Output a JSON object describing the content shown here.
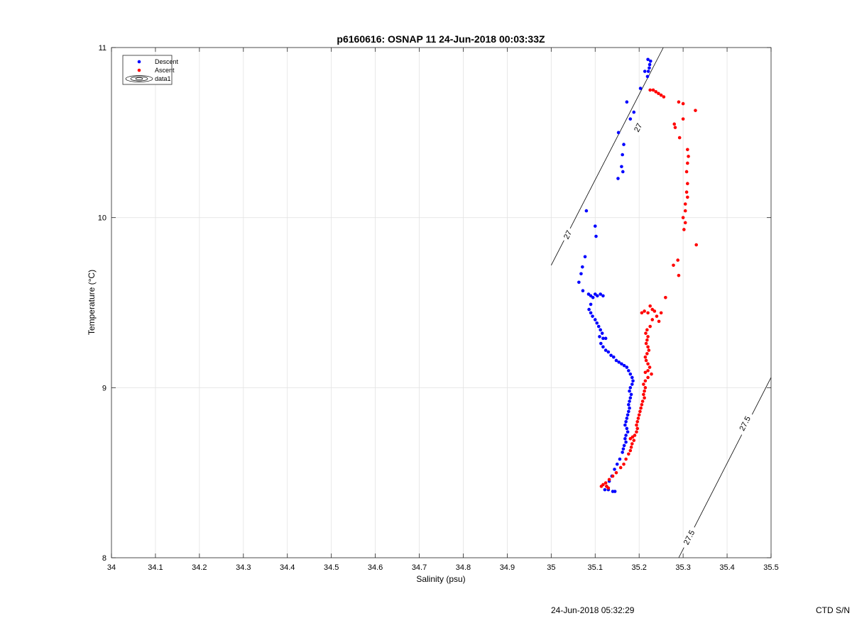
{
  "chart_data": {
    "type": "scatter",
    "title": "p6160616: OSNAP 11 24-Jun-2018 00:03:33Z",
    "xlabel": "Salinity (psu)",
    "ylabel": "Temperature (°C)",
    "xlim": [
      34,
      35.5
    ],
    "ylim": [
      8,
      11
    ],
    "xticks": [
      34,
      34.1,
      34.2,
      34.3,
      34.4,
      34.5,
      34.6,
      34.7,
      34.8,
      34.9,
      35,
      35.1,
      35.2,
      35.3,
      35.4,
      35.5
    ],
    "xtick_labels": [
      "34",
      "34.1",
      "34.2",
      "34.3",
      "34.4",
      "34.5",
      "34.6",
      "34.7",
      "34.8",
      "34.9",
      "35",
      "35.1",
      "35.2",
      "35.3",
      "35.4",
      "35.5"
    ],
    "yticks": [
      8,
      9,
      10,
      11
    ],
    "ytick_labels": [
      "8",
      "9",
      "10",
      "11"
    ],
    "grid": true,
    "legend_position": "top-left",
    "legend": [
      {
        "label": "Descent",
        "marker": "dot",
        "color": "#0000ff"
      },
      {
        "label": "Ascent",
        "marker": "dot",
        "color": "#ff0000"
      },
      {
        "label": "data1",
        "marker": "contour",
        "color": "#000000"
      }
    ],
    "series": [
      {
        "name": "Descent",
        "color": "#0000ff",
        "points": [
          [
            35.22,
            10.93
          ],
          [
            35.226,
            10.92
          ],
          [
            35.224,
            10.9
          ],
          [
            35.223,
            10.88
          ],
          [
            35.221,
            10.86
          ],
          [
            35.219,
            10.83
          ],
          [
            35.213,
            10.86
          ],
          [
            35.203,
            10.76
          ],
          [
            35.172,
            10.68
          ],
          [
            35.188,
            10.62
          ],
          [
            35.18,
            10.58
          ],
          [
            35.153,
            10.5
          ],
          [
            35.165,
            10.43
          ],
          [
            35.162,
            10.37
          ],
          [
            35.16,
            10.3
          ],
          [
            35.163,
            10.27
          ],
          [
            35.152,
            10.23
          ],
          [
            35.08,
            10.04
          ],
          [
            35.1,
            9.95
          ],
          [
            35.102,
            9.89
          ],
          [
            35.077,
            9.77
          ],
          [
            35.071,
            9.71
          ],
          [
            35.068,
            9.67
          ],
          [
            35.063,
            9.62
          ],
          [
            35.072,
            9.57
          ],
          [
            35.085,
            9.55
          ],
          [
            35.09,
            9.54
          ],
          [
            35.095,
            9.53
          ],
          [
            35.1,
            9.55
          ],
          [
            35.105,
            9.54
          ],
          [
            35.112,
            9.55
          ],
          [
            35.118,
            9.54
          ],
          [
            35.09,
            9.49
          ],
          [
            35.086,
            9.46
          ],
          [
            35.09,
            9.44
          ],
          [
            35.094,
            9.42
          ],
          [
            35.1,
            9.4
          ],
          [
            35.104,
            9.38
          ],
          [
            35.108,
            9.36
          ],
          [
            35.112,
            9.34
          ],
          [
            35.116,
            9.32
          ],
          [
            35.11,
            9.3
          ],
          [
            35.118,
            9.29
          ],
          [
            35.124,
            9.29
          ],
          [
            35.113,
            9.26
          ],
          [
            35.118,
            9.24
          ],
          [
            35.124,
            9.22
          ],
          [
            35.13,
            9.21
          ],
          [
            35.136,
            9.19
          ],
          [
            35.142,
            9.18
          ],
          [
            35.148,
            9.16
          ],
          [
            35.154,
            9.15
          ],
          [
            35.16,
            9.14
          ],
          [
            35.166,
            9.13
          ],
          [
            35.172,
            9.12
          ],
          [
            35.176,
            9.1
          ],
          [
            35.18,
            9.08
          ],
          [
            35.184,
            9.06
          ],
          [
            35.186,
            9.04
          ],
          [
            35.184,
            9.02
          ],
          [
            35.18,
            9.0
          ],
          [
            35.178,
            8.98
          ],
          [
            35.182,
            8.96
          ],
          [
            35.18,
            8.94
          ],
          [
            35.178,
            8.92
          ],
          [
            35.176,
            8.9
          ],
          [
            35.178,
            8.88
          ],
          [
            35.176,
            8.86
          ],
          [
            35.174,
            8.84
          ],
          [
            35.172,
            8.82
          ],
          [
            35.17,
            8.8
          ],
          [
            35.168,
            8.78
          ],
          [
            35.172,
            8.76
          ],
          [
            35.174,
            8.74
          ],
          [
            35.17,
            8.72
          ],
          [
            35.168,
            8.7
          ],
          [
            35.17,
            8.68
          ],
          [
            35.166,
            8.66
          ],
          [
            35.164,
            8.64
          ],
          [
            35.162,
            8.62
          ],
          [
            35.156,
            8.58
          ],
          [
            35.15,
            8.55
          ],
          [
            35.144,
            8.52
          ],
          [
            35.138,
            8.48
          ],
          [
            35.132,
            8.45
          ],
          [
            35.126,
            8.42
          ],
          [
            35.122,
            8.4
          ],
          [
            35.13,
            8.4
          ],
          [
            35.14,
            8.39
          ],
          [
            35.145,
            8.39
          ]
        ]
      },
      {
        "name": "Ascent",
        "color": "#ff0000",
        "points": [
          [
            35.225,
            10.75
          ],
          [
            35.232,
            10.75
          ],
          [
            35.238,
            10.74
          ],
          [
            35.244,
            10.73
          ],
          [
            35.25,
            10.72
          ],
          [
            35.256,
            10.71
          ],
          [
            35.29,
            10.68
          ],
          [
            35.3,
            10.67
          ],
          [
            35.328,
            10.63
          ],
          [
            35.3,
            10.58
          ],
          [
            35.28,
            10.55
          ],
          [
            35.282,
            10.53
          ],
          [
            35.292,
            10.47
          ],
          [
            35.31,
            10.4
          ],
          [
            35.312,
            10.36
          ],
          [
            35.31,
            10.32
          ],
          [
            35.308,
            10.27
          ],
          [
            35.31,
            10.2
          ],
          [
            35.308,
            10.15
          ],
          [
            35.31,
            10.12
          ],
          [
            35.305,
            10.08
          ],
          [
            35.305,
            10.04
          ],
          [
            35.3,
            10.0
          ],
          [
            35.305,
            9.97
          ],
          [
            35.302,
            9.93
          ],
          [
            35.33,
            9.84
          ],
          [
            35.288,
            9.75
          ],
          [
            35.278,
            9.72
          ],
          [
            35.29,
            9.66
          ],
          [
            35.26,
            9.53
          ],
          [
            35.225,
            9.48
          ],
          [
            35.23,
            9.46
          ],
          [
            35.235,
            9.45
          ],
          [
            35.22,
            9.44
          ],
          [
            35.212,
            9.45
          ],
          [
            35.206,
            9.44
          ],
          [
            35.25,
            9.44
          ],
          [
            35.24,
            9.42
          ],
          [
            35.23,
            9.4
          ],
          [
            35.245,
            9.39
          ],
          [
            35.225,
            9.36
          ],
          [
            35.218,
            9.34
          ],
          [
            35.215,
            9.32
          ],
          [
            35.22,
            9.3
          ],
          [
            35.218,
            9.28
          ],
          [
            35.216,
            9.26
          ],
          [
            35.22,
            9.24
          ],
          [
            35.222,
            9.22
          ],
          [
            35.218,
            9.2
          ],
          [
            35.214,
            9.18
          ],
          [
            35.216,
            9.16
          ],
          [
            35.22,
            9.14
          ],
          [
            35.224,
            9.12
          ],
          [
            35.22,
            9.1
          ],
          [
            35.214,
            9.09
          ],
          [
            35.228,
            9.08
          ],
          [
            35.22,
            9.06
          ],
          [
            35.214,
            9.04
          ],
          [
            35.21,
            9.02
          ],
          [
            35.214,
            9.0
          ],
          [
            35.212,
            8.98
          ],
          [
            35.21,
            8.96
          ],
          [
            35.212,
            8.94
          ],
          [
            35.208,
            8.92
          ],
          [
            35.206,
            8.9
          ],
          [
            35.204,
            8.88
          ],
          [
            35.202,
            8.86
          ],
          [
            35.2,
            8.84
          ],
          [
            35.198,
            8.82
          ],
          [
            35.196,
            8.8
          ],
          [
            35.194,
            8.78
          ],
          [
            35.196,
            8.76
          ],
          [
            35.194,
            8.74
          ],
          [
            35.19,
            8.72
          ],
          [
            35.185,
            8.71
          ],
          [
            35.18,
            8.7
          ],
          [
            35.188,
            8.69
          ],
          [
            35.184,
            8.67
          ],
          [
            35.182,
            8.65
          ],
          [
            35.18,
            8.63
          ],
          [
            35.176,
            8.61
          ],
          [
            35.17,
            8.58
          ],
          [
            35.165,
            8.55
          ],
          [
            35.158,
            8.53
          ],
          [
            35.148,
            8.5
          ],
          [
            35.14,
            8.48
          ],
          [
            35.132,
            8.46
          ],
          [
            35.124,
            8.44
          ],
          [
            35.118,
            8.43
          ],
          [
            35.114,
            8.42
          ],
          [
            35.126,
            8.42
          ],
          [
            35.13,
            8.41
          ]
        ]
      }
    ],
    "isopycnals": [
      {
        "label": "27",
        "from": [
          35.0,
          9.72
        ],
        "to": [
          35.255,
          11.0
        ],
        "label_positions": [
          [
            35.037,
            9.9
          ],
          [
            35.197,
            10.53
          ]
        ]
      },
      {
        "label": "27.5",
        "from": [
          35.29,
          8.0
        ],
        "to": [
          35.5,
          9.06
        ],
        "label_positions": [
          [
            35.313,
            8.12
          ],
          [
            35.44,
            8.79
          ]
        ]
      }
    ]
  },
  "footer": {
    "timestamp": "24-Jun-2018 05:32:29",
    "serial": "CTD S/N"
  }
}
